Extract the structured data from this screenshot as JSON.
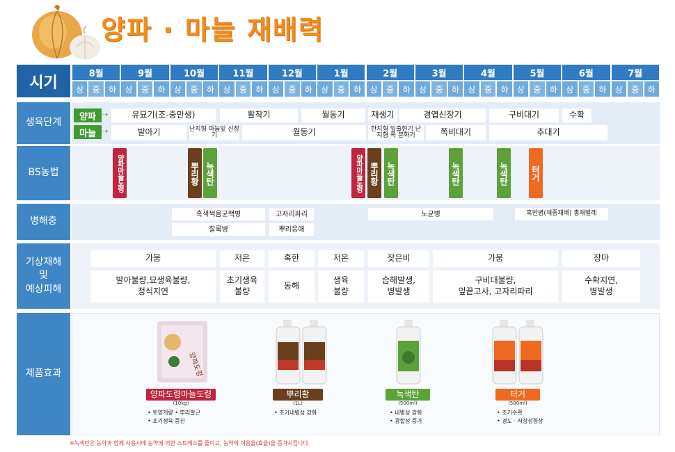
{
  "header": {
    "title": "양파 · 마늘 재배력",
    "onion_icon": "onion-garlic-icon"
  },
  "timeline": {
    "label": "시기",
    "months": [
      "8월",
      "9월",
      "10월",
      "11월",
      "12월",
      "1월",
      "2월",
      "3월",
      "4월",
      "5월",
      "6월",
      "7월"
    ],
    "periods": [
      "상",
      "중",
      "하"
    ]
  },
  "growth": {
    "label": "생육단계",
    "onion_tag": "양파",
    "garlic_tag": "마늘",
    "onion_stages": [
      "유묘기(조-중만생)",
      "활착기",
      "월동기",
      "재생기",
      "경엽신장기",
      "구비대기",
      "수확"
    ],
    "garlic_stages": [
      "발아기",
      "난지형 마늘잎 신장기",
      "월동기",
      "한지형 잎출현기 난지형 쪽 분화기",
      "쪽비대기",
      "추대기"
    ]
  },
  "bs": {
    "label": "BS농법",
    "bars": [
      "양파마늘도령",
      "뿌리황",
      "녹색탄",
      "양파마늘도령",
      "뿌리황",
      "녹색탄",
      "녹색탄",
      "녹색탄",
      "터거"
    ]
  },
  "pests": {
    "label": "병해충",
    "items": [
      "흑색썩음균핵병",
      "고자리파리",
      "노균병",
      "흑반병(채종재배) 총채벌레",
      "잘록병",
      "뿌리응애"
    ]
  },
  "weather": {
    "label_lines": [
      "기상재해",
      "및",
      "예상피해"
    ],
    "headers": [
      "가뭄",
      "저온",
      "혹한",
      "저온",
      "잦은비",
      "가뭄",
      "장마"
    ],
    "effects": [
      "발아불량,묘생육불량,\n정식지연",
      "초기생육\n불량",
      "동해",
      "생육\n불량",
      "습해발생,\n병발생",
      "구비대불량,\n잎끝고사, 고자리파리",
      "수확지연,\n병발생"
    ]
  },
  "products": {
    "label": "제품효과",
    "items": [
      {
        "name": "양파도령마늘도령",
        "size": "(10kg)",
        "bullets": [
          "• 토양개량  • 뿌리발근",
          "• 초기생육 증진"
        ],
        "color": "#c0253c"
      },
      {
        "name": "뿌리황",
        "size": "(1L)",
        "bullets": [
          "• 초기내병성 강화"
        ],
        "color": "#6b3f1b"
      },
      {
        "name": "녹색탄",
        "size": "(500ml)",
        "bullets": [
          "• 내병성 강화",
          "• 광합성 증가"
        ],
        "color": "#5ca238"
      },
      {
        "name": "터거",
        "size": "(500ml)",
        "bullets": [
          "• 조기수확",
          "• 경도 · 저장성향상"
        ],
        "color": "#ef6a21"
      }
    ]
  },
  "footnote": "※녹색탄은 농약과 함께 사용시에 농약에 의한 스트레스를 줄이고, 농약의 이용율(효율)을 증가시킵니다."
}
